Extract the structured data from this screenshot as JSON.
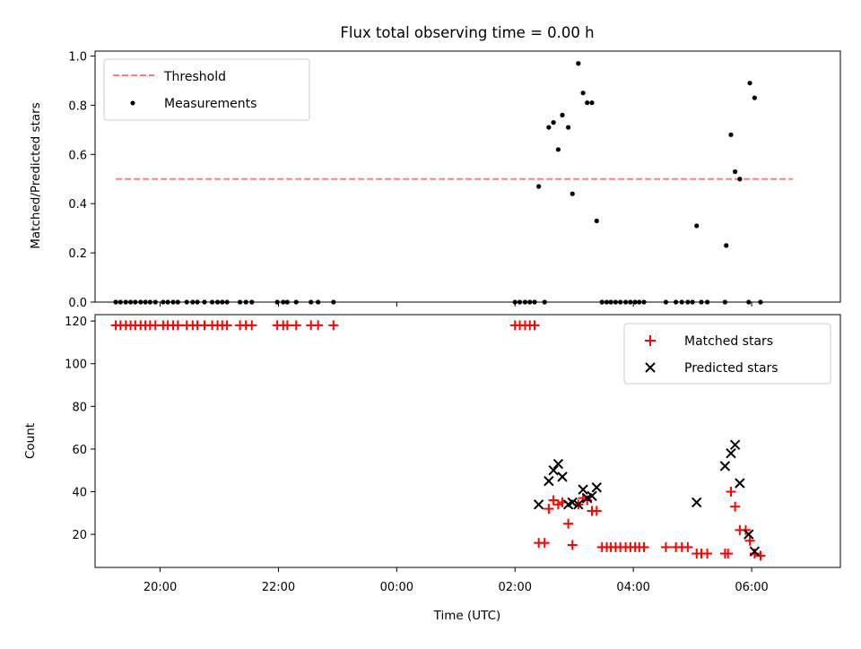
{
  "chart_data": [
    {
      "type": "scatter",
      "title": "Flux total observing time = 0.00 h",
      "xlabel": "",
      "ylabel": "Matched/Predicted stars",
      "ylim": [
        0,
        1.02
      ],
      "xlim": [
        18.9,
        31.5
      ],
      "yticks": [
        0.0,
        0.2,
        0.4,
        0.6,
        0.8,
        1.0
      ],
      "ytick_labels": [
        "0.0",
        "0.2",
        "0.4",
        "0.6",
        "0.8",
        "1.0"
      ],
      "legend": {
        "placement": "upper-left",
        "entries": [
          "Threshold",
          "Measurements"
        ]
      },
      "threshold": {
        "name": "Threshold",
        "value": 0.5,
        "x": [
          19.25,
          30.7
        ],
        "color": "#ff7f7f"
      },
      "series": [
        {
          "name": "Measurements",
          "color": "#000000",
          "marker": "dot",
          "points": [
            [
              19.25,
              0
            ],
            [
              19.33,
              0
            ],
            [
              19.42,
              0
            ],
            [
              19.5,
              0
            ],
            [
              19.58,
              0
            ],
            [
              19.67,
              0
            ],
            [
              19.75,
              0
            ],
            [
              19.83,
              0
            ],
            [
              19.92,
              0
            ],
            [
              20.05,
              0
            ],
            [
              20.13,
              0
            ],
            [
              20.22,
              0
            ],
            [
              20.3,
              0
            ],
            [
              20.45,
              0
            ],
            [
              20.55,
              0
            ],
            [
              20.63,
              0
            ],
            [
              20.75,
              0
            ],
            [
              20.88,
              0
            ],
            [
              20.97,
              0
            ],
            [
              21.05,
              0
            ],
            [
              21.13,
              0
            ],
            [
              21.35,
              0
            ],
            [
              21.45,
              0
            ],
            [
              21.55,
              0
            ],
            [
              21.98,
              0
            ],
            [
              22.08,
              0
            ],
            [
              22.15,
              0
            ],
            [
              22.3,
              0
            ],
            [
              22.55,
              0
            ],
            [
              22.67,
              0
            ],
            [
              22.93,
              0
            ],
            [
              26.0,
              0
            ],
            [
              26.08,
              0
            ],
            [
              26.17,
              0
            ],
            [
              26.25,
              0
            ],
            [
              26.33,
              0
            ],
            [
              26.5,
              0
            ],
            [
              26.4,
              0.47
            ],
            [
              26.57,
              0.71
            ],
            [
              26.65,
              0.73
            ],
            [
              26.73,
              0.62
            ],
            [
              26.8,
              0.76
            ],
            [
              26.9,
              0.71
            ],
            [
              26.97,
              0.44
            ],
            [
              27.07,
              0.97
            ],
            [
              27.15,
              0.85
            ],
            [
              27.22,
              0.81
            ],
            [
              27.3,
              0.81
            ],
            [
              27.38,
              0.33
            ],
            [
              27.47,
              0
            ],
            [
              27.55,
              0
            ],
            [
              27.62,
              0
            ],
            [
              27.7,
              0
            ],
            [
              27.78,
              0
            ],
            [
              27.87,
              0
            ],
            [
              27.95,
              0
            ],
            [
              28.03,
              0
            ],
            [
              28.1,
              0
            ],
            [
              28.18,
              0
            ],
            [
              28.55,
              0
            ],
            [
              28.72,
              0
            ],
            [
              28.82,
              0
            ],
            [
              28.92,
              0
            ],
            [
              29.0,
              0
            ],
            [
              29.15,
              0
            ],
            [
              29.25,
              0
            ],
            [
              29.55,
              0
            ],
            [
              29.95,
              0
            ],
            [
              30.15,
              0
            ],
            [
              29.07,
              0.31
            ],
            [
              29.57,
              0.23
            ],
            [
              29.65,
              0.68
            ],
            [
              29.72,
              0.53
            ],
            [
              29.8,
              0.5
            ],
            [
              29.97,
              0.89
            ],
            [
              30.05,
              0.83
            ]
          ]
        }
      ]
    },
    {
      "type": "scatter",
      "title": "",
      "xlabel": "Time (UTC)",
      "ylabel": "Count",
      "ylim": [
        4.5,
        123
      ],
      "xlim": [
        18.9,
        31.5
      ],
      "yticks": [
        20,
        40,
        60,
        80,
        100,
        120
      ],
      "ytick_labels": [
        "20",
        "40",
        "60",
        "80",
        "100",
        "120"
      ],
      "xticks": [
        20,
        22,
        24,
        26,
        28,
        30
      ],
      "xtick_labels": [
        "20:00",
        "22:00",
        "00:00",
        "02:00",
        "04:00",
        "06:00"
      ],
      "legend": {
        "placement": "upper-right",
        "entries": [
          "Matched stars",
          "Predicted stars"
        ]
      },
      "series": [
        {
          "name": "Matched stars",
          "color": "#ff0000",
          "marker": "plus",
          "points": [
            [
              19.25,
              118
            ],
            [
              19.33,
              118
            ],
            [
              19.42,
              118
            ],
            [
              19.5,
              118
            ],
            [
              19.58,
              118
            ],
            [
              19.67,
              118
            ],
            [
              19.75,
              118
            ],
            [
              19.83,
              118
            ],
            [
              19.92,
              118
            ],
            [
              20.05,
              118
            ],
            [
              20.13,
              118
            ],
            [
              20.22,
              118
            ],
            [
              20.3,
              118
            ],
            [
              20.45,
              118
            ],
            [
              20.55,
              118
            ],
            [
              20.63,
              118
            ],
            [
              20.75,
              118
            ],
            [
              20.88,
              118
            ],
            [
              20.97,
              118
            ],
            [
              21.05,
              118
            ],
            [
              21.13,
              118
            ],
            [
              21.35,
              118
            ],
            [
              21.45,
              118
            ],
            [
              21.55,
              118
            ],
            [
              21.98,
              118
            ],
            [
              22.08,
              118
            ],
            [
              22.15,
              118
            ],
            [
              22.3,
              118
            ],
            [
              22.55,
              118
            ],
            [
              22.67,
              118
            ],
            [
              22.93,
              118
            ],
            [
              26.0,
              118
            ],
            [
              26.08,
              118
            ],
            [
              26.17,
              118
            ],
            [
              26.25,
              118
            ],
            [
              26.33,
              118
            ],
            [
              26.4,
              16
            ],
            [
              26.5,
              16
            ],
            [
              26.57,
              32
            ],
            [
              26.65,
              36
            ],
            [
              26.73,
              34
            ],
            [
              26.8,
              35
            ],
            [
              26.9,
              25
            ],
            [
              26.97,
              15
            ],
            [
              27.07,
              34
            ],
            [
              27.15,
              37
            ],
            [
              27.22,
              36
            ],
            [
              27.3,
              31
            ],
            [
              27.38,
              31
            ],
            [
              27.47,
              14
            ],
            [
              27.55,
              14
            ],
            [
              27.62,
              14
            ],
            [
              27.7,
              14
            ],
            [
              27.78,
              14
            ],
            [
              27.87,
              14
            ],
            [
              27.95,
              14
            ],
            [
              28.03,
              14
            ],
            [
              28.1,
              14
            ],
            [
              28.18,
              14
            ],
            [
              28.55,
              14
            ],
            [
              28.72,
              14
            ],
            [
              28.82,
              14
            ],
            [
              28.92,
              14
            ],
            [
              29.07,
              11
            ],
            [
              29.15,
              11
            ],
            [
              29.25,
              11
            ],
            [
              29.55,
              11
            ],
            [
              29.6,
              11
            ],
            [
              29.65,
              40
            ],
            [
              29.72,
              33
            ],
            [
              29.8,
              22
            ],
            [
              29.9,
              22
            ],
            [
              29.97,
              17
            ],
            [
              30.05,
              11
            ],
            [
              30.15,
              10
            ]
          ]
        },
        {
          "name": "Predicted stars",
          "color": "#000000",
          "marker": "x",
          "points": [
            [
              26.4,
              34
            ],
            [
              26.57,
              45
            ],
            [
              26.65,
              50
            ],
            [
              26.73,
              53
            ],
            [
              26.8,
              47
            ],
            [
              26.9,
              34
            ],
            [
              26.97,
              35
            ],
            [
              27.07,
              34
            ],
            [
              27.15,
              41
            ],
            [
              27.22,
              37
            ],
            [
              27.3,
              38
            ],
            [
              27.38,
              42
            ],
            [
              29.07,
              35
            ],
            [
              29.55,
              52
            ],
            [
              29.65,
              58
            ],
            [
              29.72,
              62
            ],
            [
              29.8,
              44
            ],
            [
              29.95,
              20
            ],
            [
              30.05,
              12
            ]
          ]
        }
      ]
    }
  ]
}
